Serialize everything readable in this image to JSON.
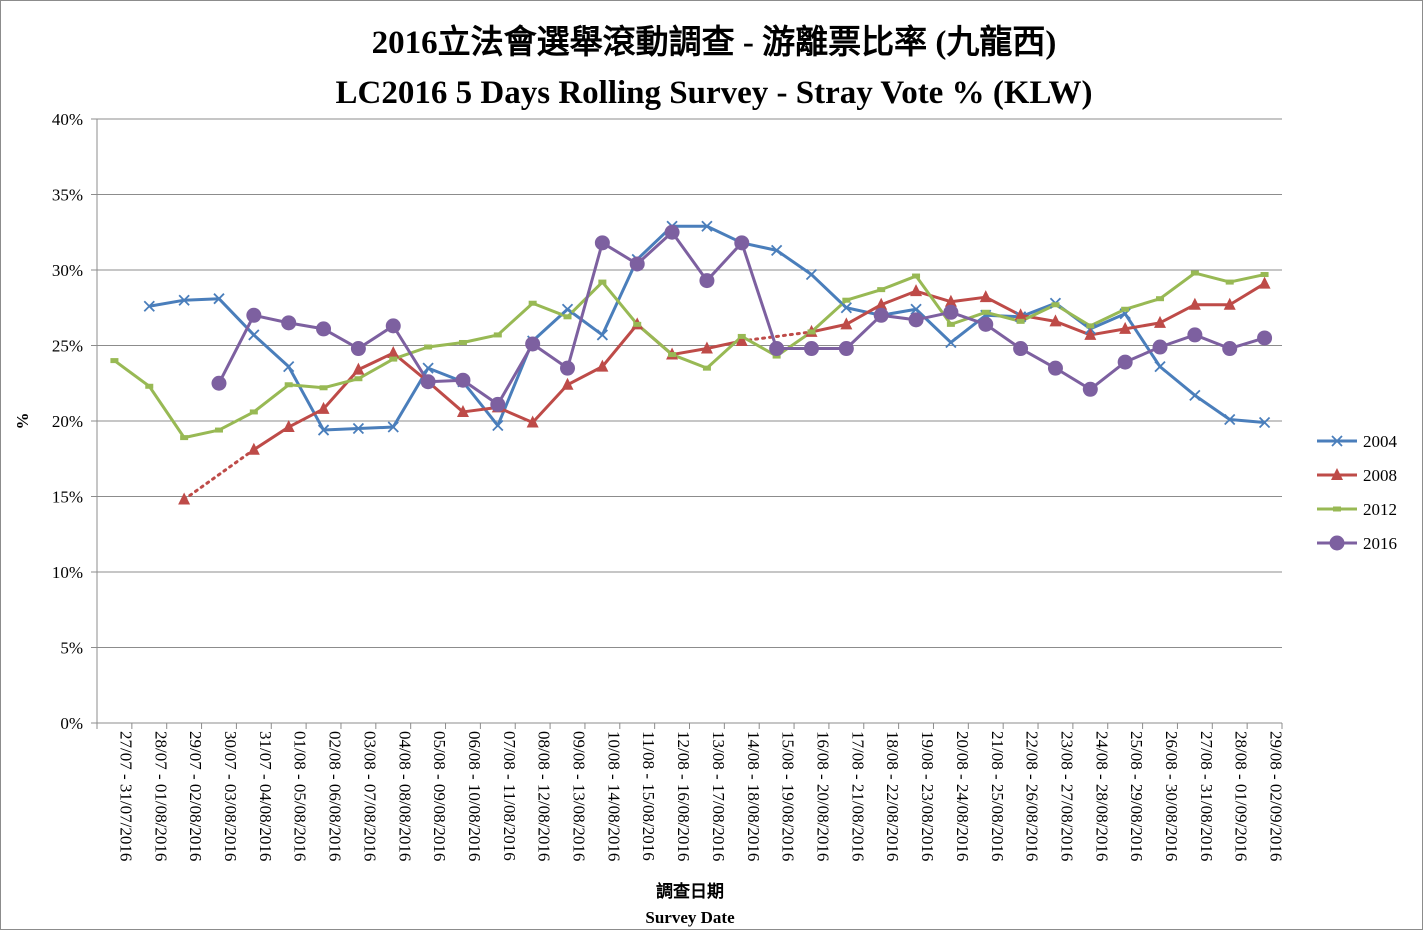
{
  "chart_data": {
    "type": "line",
    "title": "2016立法會選舉滾動調查 - 游離票比率 (九龍西)",
    "subtitle": "LC2016 5 Days Rolling Survey - Stray Vote % (KLW)",
    "xlabel_line1": "調查日期",
    "xlabel_line2": "Survey Date",
    "ylabel": "%",
    "ylim": [
      0,
      40
    ],
    "yticks": [
      "0%",
      "5%",
      "10%",
      "15%",
      "20%",
      "25%",
      "30%",
      "35%",
      "40%"
    ],
    "grid": true,
    "legend_position": "right",
    "categories": [
      "27/07 - 31/07/2016",
      "28/07 - 01/08/2016",
      "29/07 - 02/08/2016",
      "30/07 - 03/08/2016",
      "31/07 - 04/08/2016",
      "01/08 - 05/08/2016",
      "02/08 - 06/08/2016",
      "03/08 - 07/08/2016",
      "04/08 - 08/08/2016",
      "05/08 - 09/08/2016",
      "06/08 - 10/08/2016",
      "07/08 - 11/08/2016",
      "08/08 - 12/08/2016",
      "09/08 - 13/08/2016",
      "10/08 - 14/08/2016",
      "11/08 - 15/08/2016",
      "12/08 - 16/08/2016",
      "13/08 - 17/08/2016",
      "14/08 - 18/08/2016",
      "15/08 - 19/08/2016",
      "16/08 - 20/08/2016",
      "17/08 - 21/08/2016",
      "18/08 - 22/08/2016",
      "19/08 - 23/08/2016",
      "20/08 - 24/08/2016",
      "21/08 - 25/08/2016",
      "22/08 - 26/08/2016",
      "23/08 - 27/08/2016",
      "24/08 - 28/08/2016",
      "25/08 - 29/08/2016",
      "26/08 - 30/08/2016",
      "27/08 - 31/08/2016",
      "28/08 - 01/09/2016",
      "29/08 - 02/09/2016"
    ],
    "series": [
      {
        "name": "2004",
        "color": "#4a7ebb",
        "marker": "x",
        "values": [
          null,
          27.6,
          28.0,
          28.1,
          25.7,
          23.6,
          19.4,
          19.5,
          19.6,
          23.5,
          22.6,
          19.7,
          25.3,
          27.4,
          25.7,
          30.7,
          32.9,
          32.9,
          31.8,
          31.3,
          29.7,
          27.5,
          27.0,
          27.4,
          25.2,
          27.0,
          26.9,
          27.8,
          26.1,
          27.1,
          23.6,
          21.7,
          20.1,
          19.9
        ]
      },
      {
        "name": "2008",
        "color": "#be4b48",
        "marker": "triangle",
        "values": [
          null,
          null,
          14.8,
          null,
          18.1,
          19.6,
          20.8,
          23.4,
          24.5,
          22.6,
          20.6,
          20.9,
          19.9,
          22.4,
          23.6,
          26.4,
          24.4,
          24.8,
          25.3,
          null,
          25.9,
          26.4,
          27.7,
          28.6,
          27.9,
          28.2,
          27.0,
          26.6,
          25.7,
          26.1,
          26.5,
          27.7,
          27.7,
          29.1
        ],
        "dotted_segments": [
          [
            2,
            4
          ],
          [
            18,
            20
          ]
        ]
      },
      {
        "name": "2012",
        "color": "#98b954",
        "marker": "square",
        "values": [
          24.0,
          22.3,
          18.9,
          19.4,
          20.6,
          22.4,
          22.2,
          22.8,
          24.1,
          24.9,
          25.2,
          25.7,
          27.8,
          26.9,
          29.2,
          26.4,
          24.4,
          23.5,
          25.6,
          24.3,
          25.9,
          28.0,
          28.7,
          29.6,
          26.4,
          27.2,
          26.6,
          27.7,
          26.3,
          27.4,
          28.1,
          29.8,
          29.2,
          29.7
        ]
      },
      {
        "name": "2016",
        "color": "#7d60a0",
        "marker": "circle",
        "values": [
          null,
          null,
          null,
          22.5,
          27.0,
          26.5,
          26.1,
          24.8,
          26.3,
          22.6,
          22.7,
          21.1,
          25.1,
          23.5,
          31.8,
          30.4,
          32.5,
          29.3,
          31.8,
          24.8,
          24.8,
          24.8,
          27.0,
          26.7,
          27.2,
          26.4,
          24.8,
          23.5,
          22.1,
          23.9,
          24.9,
          25.7,
          24.8,
          25.5
        ]
      }
    ]
  }
}
